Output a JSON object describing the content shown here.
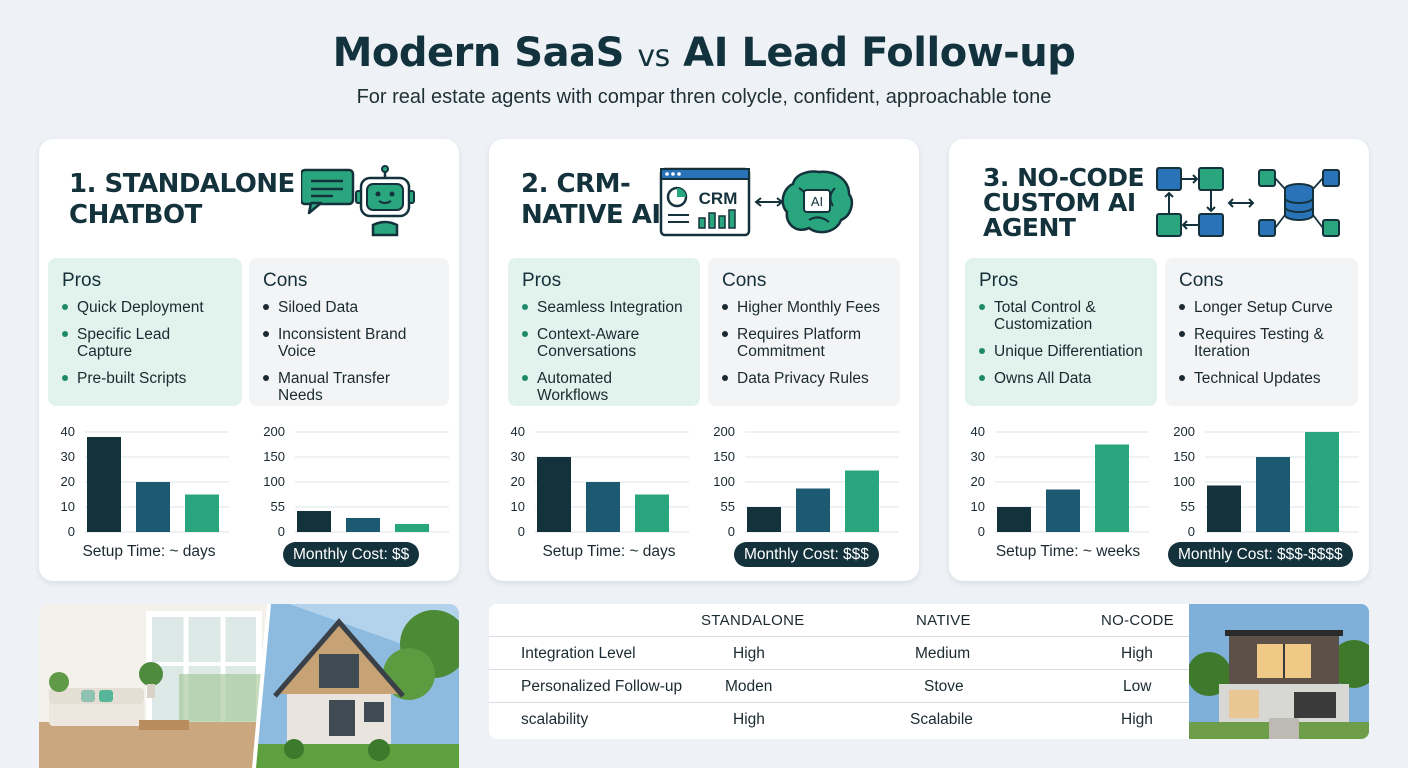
{
  "header": {
    "title_part1": "Modern SaaS",
    "title_vs": "vs",
    "title_part2": "AI Lead Follow-up",
    "subtitle": "For real estate agents with compar thren colycle, confident, approachable tone"
  },
  "colors": {
    "dark": "#14323c",
    "teal_dark": "#1c5a72",
    "green": "#2aa67e",
    "pros_bg": "#e2f2ec"
  },
  "cards": [
    {
      "title": "1. STANDALONE CHATBOT",
      "icon": "chatbot-icon",
      "pros_heading": "Pros",
      "pros": [
        "Quick Deployment",
        "Specific Lead Capture",
        "Pre-built Scripts"
      ],
      "cons_heading": "Cons",
      "cons": [
        "Siloed Data",
        "Inconsistent Brand Voice",
        "Manual Transfer Needs"
      ],
      "setup_caption": "Setup Time: ~ days",
      "cost_caption": "Monthly Cost: $$"
    },
    {
      "title": "2. CRM-NATIVE AI",
      "icon": "crm-ai-icon",
      "crm_label": "CRM",
      "ai_label": "AI",
      "pros_heading": "Pros",
      "pros": [
        "Seamless Integration",
        "Context-Aware Conversations",
        "Automated Workflows"
      ],
      "cons_heading": "Cons",
      "cons": [
        "Higher Monthly Fees",
        "Requires Platform Commitment",
        "Data Privacy Rules"
      ],
      "setup_caption": "Setup Time: ~ days",
      "cost_caption": "Monthly Cost: $$$"
    },
    {
      "title": "3. NO-CODE CUSTOM AI AGENT",
      "icon": "workflow-icon",
      "pros_heading": "Pros",
      "pros": [
        "Total Control & Customization",
        "Unique Differentiation",
        "Owns All Data"
      ],
      "cons_heading": "Cons",
      "cons": [
        "Longer Setup Curve",
        "Requires Testing & Iteration",
        "Technical Updates"
      ],
      "setup_caption": "Setup Time: ~ weeks",
      "cost_caption": "Monthly Cost: $$$-$$$$"
    }
  ],
  "chart_data": [
    {
      "type": "bar",
      "ylim": [
        0,
        40
      ],
      "yticks": [
        "40",
        "30",
        "20",
        "10",
        "0"
      ],
      "values": [
        38,
        20,
        15
      ]
    },
    {
      "type": "bar",
      "ylim": [
        0,
        200
      ],
      "yticks": [
        "200",
        "150",
        "100",
        "55",
        "0"
      ],
      "values": [
        42,
        28,
        16
      ]
    },
    {
      "type": "bar",
      "ylim": [
        0,
        40
      ],
      "yticks": [
        "40",
        "30",
        "20",
        "10",
        "0"
      ],
      "values": [
        30,
        20,
        15
      ]
    },
    {
      "type": "bar",
      "ylim": [
        0,
        200
      ],
      "yticks": [
        "200",
        "150",
        "100",
        "55",
        "0"
      ],
      "values": [
        50,
        87,
        123
      ]
    },
    {
      "type": "bar",
      "ylim": [
        0,
        40
      ],
      "yticks": [
        "40",
        "30",
        "20",
        "10",
        "0"
      ],
      "values": [
        10,
        17,
        35
      ]
    },
    {
      "type": "bar",
      "ylim": [
        0,
        200
      ],
      "yticks": [
        "200",
        "150",
        "100",
        "55",
        "0"
      ],
      "values": [
        93,
        150,
        200
      ]
    }
  ],
  "table": {
    "headers": [
      "STANDALONE",
      "NATIVE",
      "NO-CODE"
    ],
    "rows": [
      {
        "label": "Integration Level",
        "values": [
          "High",
          "Medium",
          "High"
        ]
      },
      {
        "label": "Personalized Follow-up",
        "values": [
          "Moden",
          "Stove",
          "Low"
        ]
      },
      {
        "label": "scalability",
        "values": [
          "High",
          "Scalabile",
          "High"
        ]
      }
    ]
  }
}
